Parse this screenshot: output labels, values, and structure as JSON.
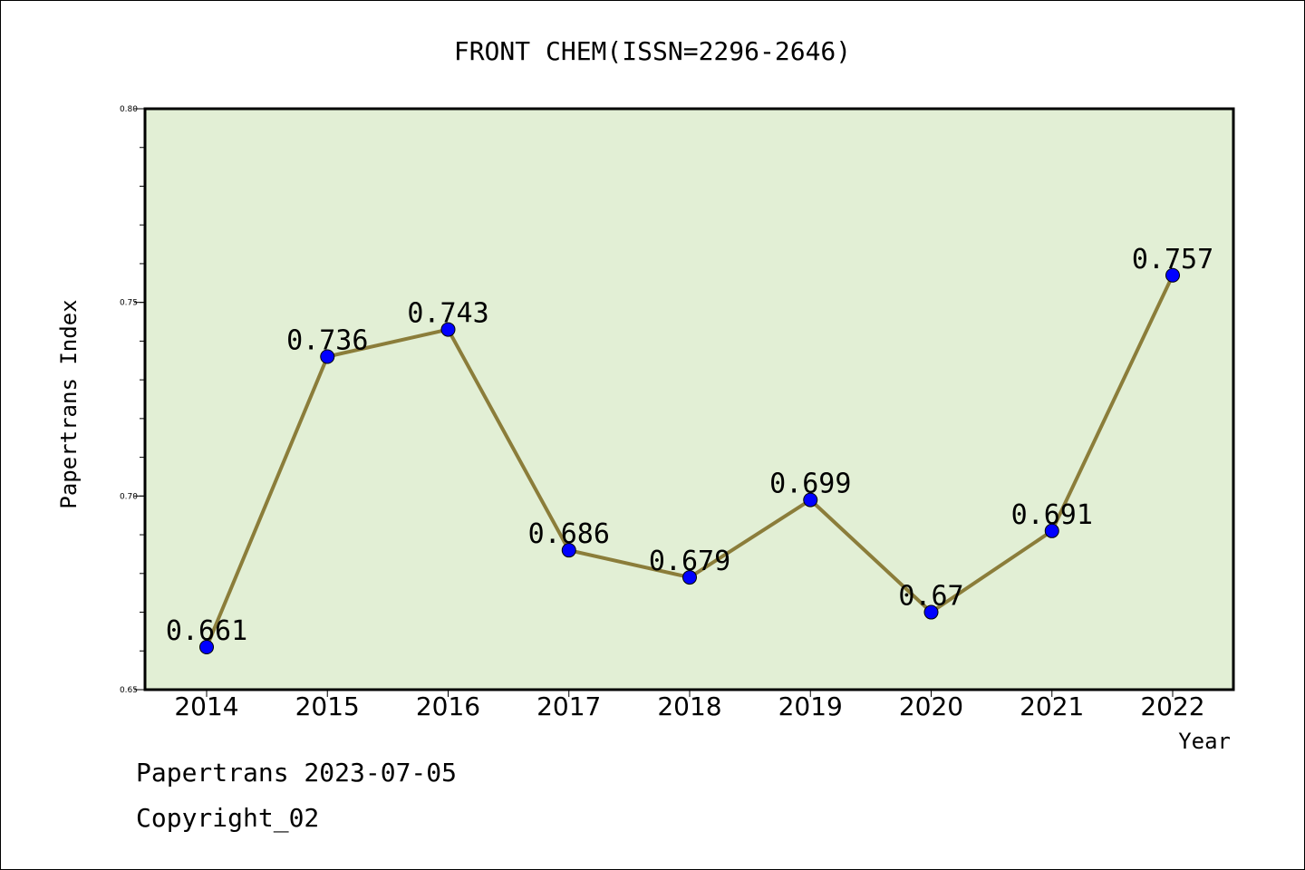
{
  "chart_data": {
    "type": "line",
    "title": "FRONT CHEM(ISSN=2296-2646)",
    "xlabel": "Year",
    "ylabel": "Papertrans Index",
    "categories": [
      "2014",
      "2015",
      "2016",
      "2017",
      "2018",
      "2019",
      "2020",
      "2021",
      "2022"
    ],
    "series": [
      {
        "values": [
          0.661,
          0.736,
          0.743,
          0.686,
          0.679,
          0.699,
          0.67,
          0.691,
          0.757
        ],
        "data_labels": [
          "0.661",
          "0.736",
          "0.743",
          "0.686",
          "0.679",
          "0.699",
          "0.67",
          "0.691",
          "0.757"
        ]
      }
    ],
    "ylim": [
      0.65,
      0.8
    ],
    "yticks": [
      {
        "value": 0.65,
        "label": "0.65"
      },
      {
        "value": 0.7,
        "label": "0.70"
      },
      {
        "value": 0.75,
        "label": "0.75"
      },
      {
        "value": 0.8,
        "label": "0.80"
      }
    ],
    "minor_tick_step": 0.01,
    "grid": false,
    "legend": "none",
    "colors": {
      "plot_background": "#e2efd5",
      "line": "#8b7d3a",
      "marker": "#0000ff"
    }
  },
  "footer": {
    "line1": "Papertrans 2023-07-05",
    "line2": "Copyright_02"
  }
}
